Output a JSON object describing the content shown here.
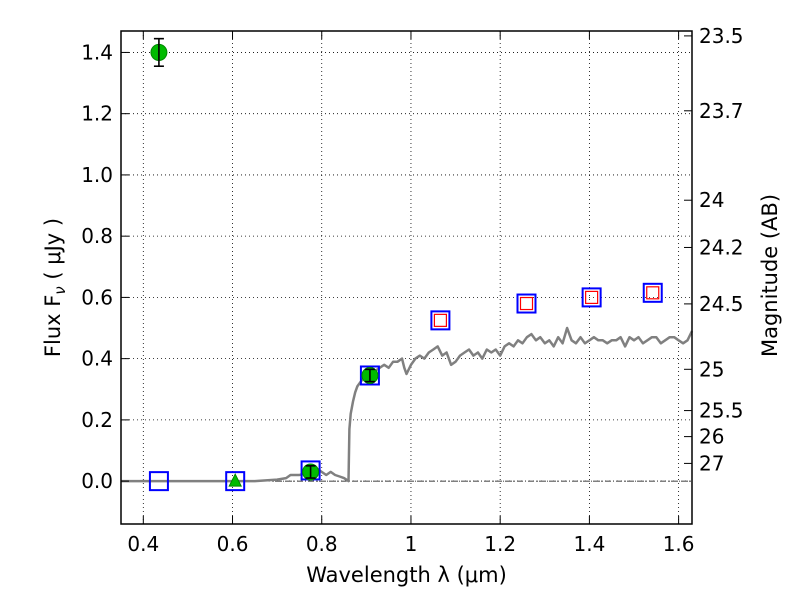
{
  "chart_data": {
    "type": "scatter",
    "xlabel": "Wavelength  λ (μm)",
    "ylabel": "Flux  F",
    "ylabel_sub": "ν",
    "ylabel_units": "  ( μJy )",
    "y2label": "Magnitude (AB)",
    "xlim": [
      0.35,
      1.63
    ],
    "ylim": [
      -0.14,
      1.47
    ],
    "x_ticks": [
      0.4,
      0.6,
      0.8,
      1.0,
      1.2,
      1.4,
      1.6
    ],
    "x_tick_labels": [
      "0.4",
      "0.6",
      "0.8",
      "1",
      "1.2",
      "1.4",
      "1.6"
    ],
    "y_ticks": [
      0.0,
      0.2,
      0.4,
      0.6,
      0.8,
      1.0,
      1.2,
      1.4
    ],
    "y_tick_labels": [
      "0.0",
      "0.2",
      "0.4",
      "0.6",
      "0.8",
      "1.0",
      "1.2",
      "1.4"
    ],
    "y2_ticks": [
      {
        "label": "23.5",
        "flux": 1.454
      },
      {
        "label": "23.7",
        "flux": 1.2094
      },
      {
        "label": "24",
        "flux": 0.9174
      },
      {
        "label": "24.2",
        "flux": 0.7631
      },
      {
        "label": "24.5",
        "flux": 0.5788
      },
      {
        "label": "25",
        "flux": 0.3652
      },
      {
        "label": "25.5",
        "flux": 0.2304
      },
      {
        "label": "26",
        "flux": 0.1454
      },
      {
        "label": "27",
        "flux": 0.0579
      }
    ],
    "grid": true,
    "zero_line": true,
    "colors": {
      "spectrum": "#808080",
      "detection": "#00bb00",
      "model_box": "#0000ff",
      "upper_box": "#ff0000",
      "errorbar": "#000000"
    },
    "series": [
      {
        "kind": "spectrum",
        "x": [
          0.35,
          0.4,
          0.45,
          0.5,
          0.55,
          0.6,
          0.65,
          0.7,
          0.72,
          0.73,
          0.74,
          0.75,
          0.76,
          0.77,
          0.78,
          0.79,
          0.8,
          0.81,
          0.82,
          0.83,
          0.84,
          0.85,
          0.855,
          0.86,
          0.862,
          0.865,
          0.87,
          0.875,
          0.88,
          0.89,
          0.9,
          0.91,
          0.92,
          0.93,
          0.94,
          0.95,
          0.96,
          0.97,
          0.98,
          0.985,
          0.99,
          1.0,
          1.01,
          1.02,
          1.03,
          1.04,
          1.05,
          1.06,
          1.07,
          1.08,
          1.09,
          1.1,
          1.11,
          1.12,
          1.13,
          1.14,
          1.15,
          1.16,
          1.17,
          1.18,
          1.19,
          1.2,
          1.21,
          1.22,
          1.23,
          1.24,
          1.25,
          1.26,
          1.27,
          1.28,
          1.29,
          1.3,
          1.31,
          1.32,
          1.33,
          1.34,
          1.35,
          1.36,
          1.37,
          1.38,
          1.39,
          1.4,
          1.41,
          1.42,
          1.43,
          1.44,
          1.45,
          1.46,
          1.47,
          1.48,
          1.49,
          1.5,
          1.51,
          1.52,
          1.53,
          1.54,
          1.55,
          1.56,
          1.57,
          1.58,
          1.59,
          1.6,
          1.61,
          1.62,
          1.63
        ],
        "y": [
          0.0,
          0.0,
          0.0,
          0.0,
          0.0,
          0.0,
          0.0,
          0.005,
          0.01,
          0.02,
          0.02,
          0.02,
          0.025,
          0.03,
          0.04,
          0.04,
          0.03,
          0.02,
          0.03,
          0.02,
          0.015,
          0.01,
          0.005,
          0.0,
          0.17,
          0.22,
          0.26,
          0.29,
          0.31,
          0.33,
          0.34,
          0.35,
          0.36,
          0.37,
          0.38,
          0.37,
          0.39,
          0.39,
          0.4,
          0.37,
          0.35,
          0.38,
          0.4,
          0.41,
          0.4,
          0.42,
          0.43,
          0.44,
          0.41,
          0.42,
          0.38,
          0.39,
          0.41,
          0.42,
          0.43,
          0.41,
          0.42,
          0.4,
          0.43,
          0.42,
          0.43,
          0.41,
          0.44,
          0.45,
          0.44,
          0.46,
          0.45,
          0.47,
          0.48,
          0.46,
          0.47,
          0.45,
          0.46,
          0.44,
          0.47,
          0.45,
          0.5,
          0.46,
          0.45,
          0.47,
          0.45,
          0.46,
          0.47,
          0.46,
          0.46,
          0.45,
          0.46,
          0.46,
          0.47,
          0.44,
          0.47,
          0.46,
          0.47,
          0.45,
          0.46,
          0.47,
          0.47,
          0.45,
          0.46,
          0.47,
          0.47,
          0.46,
          0.45,
          0.46,
          0.49
        ]
      },
      {
        "kind": "model_boxes",
        "x": [
          0.435,
          0.606,
          0.775,
          0.908,
          1.066,
          1.259,
          1.405,
          1.542
        ],
        "y": [
          0.0,
          0.0,
          0.035,
          0.345,
          0.525,
          0.58,
          0.6,
          0.615
        ]
      },
      {
        "kind": "upper_limits",
        "x": [
          1.066,
          1.259,
          1.405,
          1.542
        ],
        "y": [
          0.525,
          0.58,
          0.6,
          0.615
        ]
      },
      {
        "kind": "detections",
        "x": [
          0.435,
          0.775,
          0.908
        ],
        "y": [
          1.4,
          0.03,
          0.345
        ],
        "yerr": [
          0.045,
          0.02,
          0.02
        ]
      },
      {
        "kind": "triangle",
        "x": [
          0.606
        ],
        "y": [
          0.0
        ]
      }
    ]
  }
}
